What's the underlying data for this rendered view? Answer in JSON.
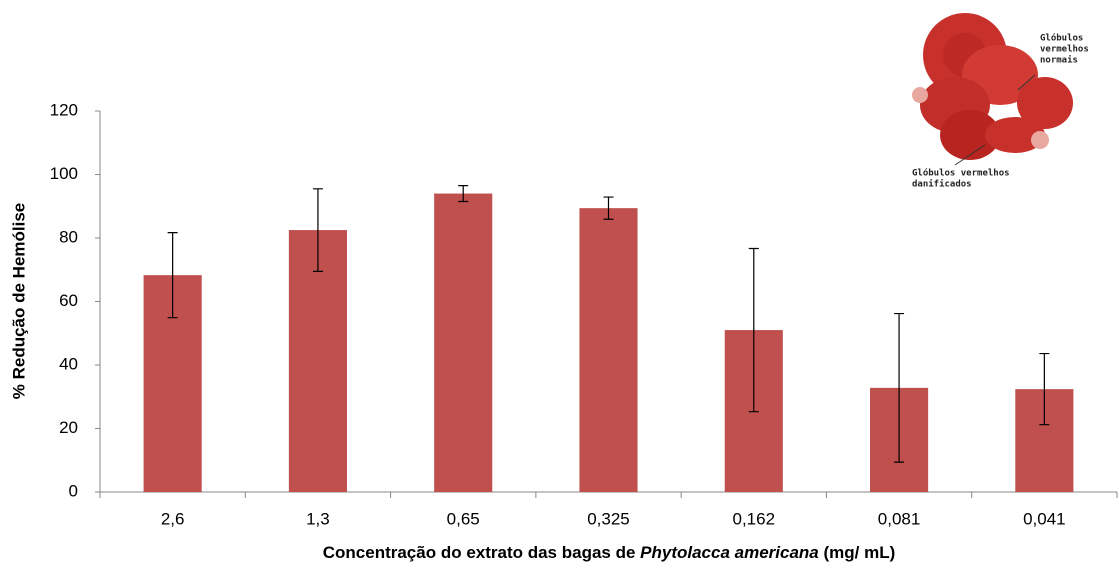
{
  "chart_data": {
    "type": "bar",
    "y_label": "% Redução de Hemólise",
    "x_label": [
      "Concentração do extrato das bagas de ",
      "Phytolacca americana",
      " (mg/ mL)"
    ],
    "categories": [
      "2,6",
      "1,3",
      "0,65",
      "0,325",
      "0,162",
      "0,081",
      "0,041"
    ],
    "values": [
      68.3,
      82.5,
      94,
      89.4,
      51,
      32.8,
      32.4
    ],
    "errors": [
      13.4,
      13,
      2.5,
      3.5,
      25.7,
      23.4,
      11.2
    ],
    "color": "#c0504d",
    "ylim": [
      0,
      120
    ],
    "yticks": [
      0,
      20,
      40,
      60,
      80,
      100,
      120
    ],
    "grid": false,
    "inset": {
      "normal_label": [
        "Glóbulos",
        "vermelhos",
        "normais"
      ],
      "damaged_label": [
        "Glóbulos vermelhos",
        "danificados"
      ]
    }
  }
}
